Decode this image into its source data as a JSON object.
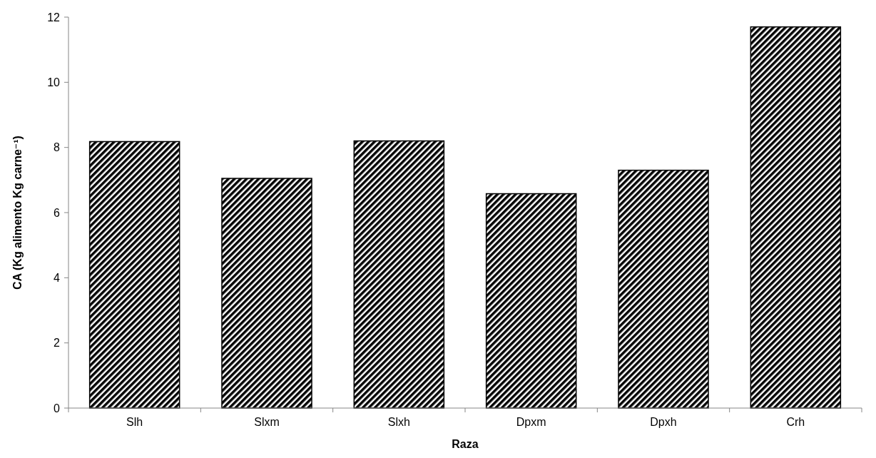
{
  "chart_data": {
    "type": "bar",
    "xlabel": "Raza",
    "ylabel": "CA (Kg alimento Kg carne⁻¹)",
    "categories": [
      "Slh",
      "Slxm",
      "Slxh",
      "Dpxm",
      "Dpxh",
      "Crh"
    ],
    "values": [
      8.18,
      7.05,
      8.2,
      6.58,
      7.3,
      11.7
    ],
    "color": "#000000",
    "ylim": [
      0,
      12
    ],
    "yticks": [
      0,
      2,
      4,
      6,
      8,
      10,
      12
    ],
    "grid": false
  }
}
